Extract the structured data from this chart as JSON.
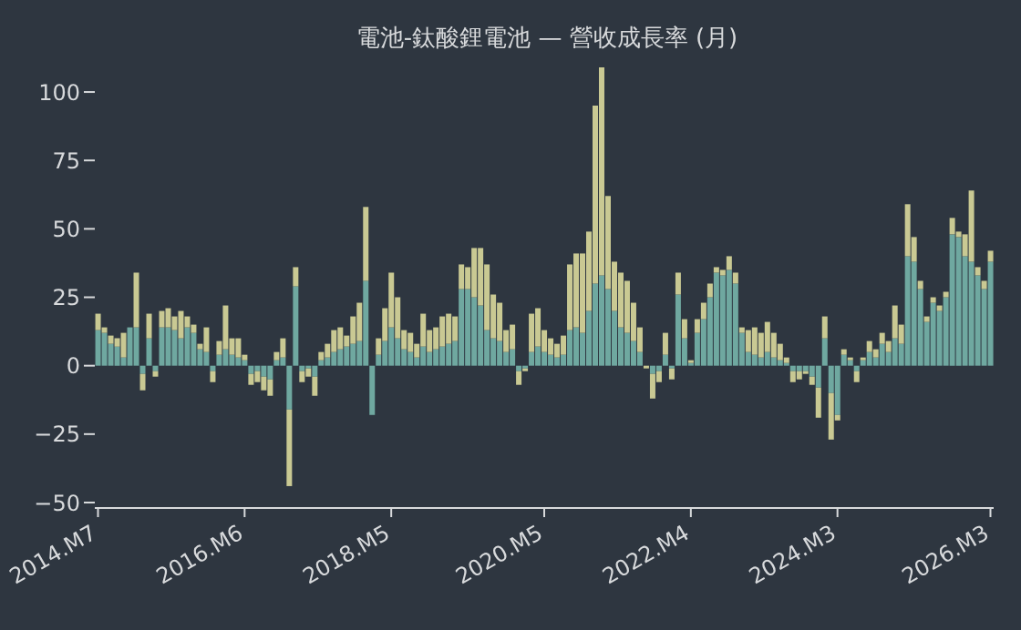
{
  "chart_data": {
    "type": "bar",
    "title": "電池-鈦酸鋰電池 — 營收成長率 (月)",
    "categories": [
      "2014.M7",
      null,
      null,
      null,
      null,
      null,
      null,
      null,
      null,
      null,
      null,
      null,
      null,
      null,
      null,
      null,
      null,
      null,
      null,
      null,
      null,
      null,
      null,
      "2016.M6",
      null,
      null,
      null,
      null,
      null,
      null,
      null,
      null,
      null,
      null,
      null,
      null,
      null,
      null,
      null,
      null,
      null,
      null,
      null,
      null,
      null,
      null,
      "2018.M5",
      null,
      null,
      null,
      null,
      null,
      null,
      null,
      null,
      null,
      null,
      null,
      null,
      null,
      null,
      null,
      null,
      null,
      null,
      null,
      null,
      null,
      null,
      null,
      "2020.M5",
      null,
      null,
      null,
      null,
      null,
      null,
      null,
      null,
      null,
      null,
      null,
      null,
      null,
      null,
      null,
      null,
      null,
      null,
      null,
      null,
      null,
      null,
      "2022.M4",
      null,
      null,
      null,
      null,
      null,
      null,
      null,
      null,
      null,
      null,
      null,
      null,
      null,
      null,
      null,
      null,
      null,
      null,
      null,
      null,
      null,
      null,
      "2024.M3",
      null,
      null,
      null,
      null,
      null,
      null,
      null,
      null,
      null,
      null,
      null,
      null,
      null,
      null,
      null,
      null,
      null,
      null,
      null,
      null,
      null,
      null,
      null,
      "2026.M3"
    ],
    "series": [
      {
        "color": "#6fa8a0",
        "values": [
          13,
          12,
          8,
          7,
          3,
          14,
          14,
          -3,
          10,
          -2,
          14,
          14,
          13,
          10,
          14,
          12,
          6,
          5,
          -2,
          4,
          6,
          4,
          3,
          2,
          -3,
          -2,
          -4,
          -5,
          2,
          3,
          -16,
          29,
          -2,
          -1,
          -4,
          2,
          3,
          5,
          6,
          7,
          8,
          9,
          31,
          -18,
          4,
          9,
          14,
          10,
          6,
          5,
          3,
          7,
          5,
          6,
          7,
          8,
          9,
          28,
          28,
          25,
          22,
          13,
          10,
          9,
          5,
          6,
          -2,
          -1,
          5,
          7,
          5,
          4,
          3,
          4,
          13,
          14,
          12,
          20,
          30,
          33,
          28,
          20,
          14,
          12,
          9,
          5,
          null,
          -3,
          -2,
          4,
          -1,
          26,
          10,
          1,
          12,
          17,
          25,
          34,
          33,
          35,
          30,
          12,
          5,
          4,
          3,
          5,
          3,
          2,
          1,
          -2,
          -2,
          -2,
          -4,
          -8,
          10,
          -10,
          -18,
          4,
          2,
          -2,
          2,
          5,
          3,
          8,
          5,
          10,
          8,
          40,
          38,
          28,
          16,
          23,
          20,
          25,
          48,
          47,
          40,
          38,
          33,
          28,
          38
        ]
      },
      {
        "color": "#c9c993",
        "values": [
          6,
          2,
          3,
          3,
          9,
          null,
          20,
          -6,
          9,
          -2,
          6,
          7,
          5,
          10,
          4,
          3,
          2,
          9,
          -4,
          5,
          16,
          6,
          7,
          2,
          -4,
          -4,
          -5,
          -6,
          3,
          7,
          -28,
          7,
          -4,
          -3,
          -7,
          3,
          5,
          8,
          8,
          4,
          10,
          14,
          27,
          null,
          6,
          12,
          20,
          15,
          7,
          7,
          5,
          12,
          8,
          8,
          11,
          11,
          9,
          9,
          8,
          18,
          21,
          24,
          16,
          14,
          8,
          9,
          -5,
          -1,
          14,
          14,
          8,
          6,
          5,
          7,
          24,
          27,
          29,
          29,
          65,
          76,
          34,
          18,
          20,
          19,
          14,
          9,
          -1,
          -9,
          -4,
          8,
          -4,
          8,
          7,
          1,
          5,
          6,
          5,
          2,
          2,
          5,
          4,
          2,
          8,
          10,
          9,
          11,
          9,
          6,
          2,
          -4,
          -3,
          -1,
          -3,
          -11,
          8,
          -17,
          -2,
          2,
          1,
          -4,
          1,
          4,
          3,
          4,
          4,
          12,
          7,
          19,
          9,
          3,
          2,
          2,
          2,
          2,
          6,
          2,
          8,
          26,
          3,
          3,
          4
        ]
      }
    ],
    "stacked": true,
    "ylim": [
      -52,
      109
    ],
    "yticks": [
      {
        "value": -50,
        "label": "−50"
      },
      {
        "value": -25,
        "label": "−25"
      },
      0,
      25,
      50,
      75,
      100
    ],
    "grid": false,
    "legend": false
  }
}
